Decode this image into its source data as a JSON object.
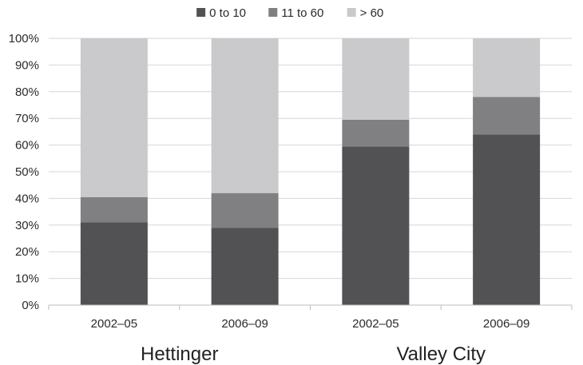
{
  "chart_data": {
    "type": "bar",
    "stacked": true,
    "percent_axis": true,
    "title": "",
    "xlabel": "",
    "ylabel": "",
    "ylim": [
      0,
      100
    ],
    "yticks": [
      "0%",
      "10%",
      "20%",
      "30%",
      "40%",
      "50%",
      "60%",
      "70%",
      "80%",
      "90%",
      "100%"
    ],
    "grid": true,
    "legend_position": "top-center",
    "categories": [
      "2002–05",
      "2006–09",
      "2002–05",
      "2006–09"
    ],
    "groups": [
      {
        "label": "Hettinger",
        "category_indices": [
          0,
          1
        ]
      },
      {
        "label": "Valley City",
        "category_indices": [
          2,
          3
        ]
      }
    ],
    "series": [
      {
        "name": "0 to 10",
        "color": "#525254",
        "values": [
          31,
          29,
          59.5,
          64
        ]
      },
      {
        "name": "11 to 60",
        "color": "#808082",
        "values": [
          9.5,
          13,
          10,
          14
        ]
      },
      {
        "name": "> 60",
        "color": "#cacacc",
        "values": [
          59.5,
          58,
          30.5,
          22
        ]
      }
    ]
  }
}
